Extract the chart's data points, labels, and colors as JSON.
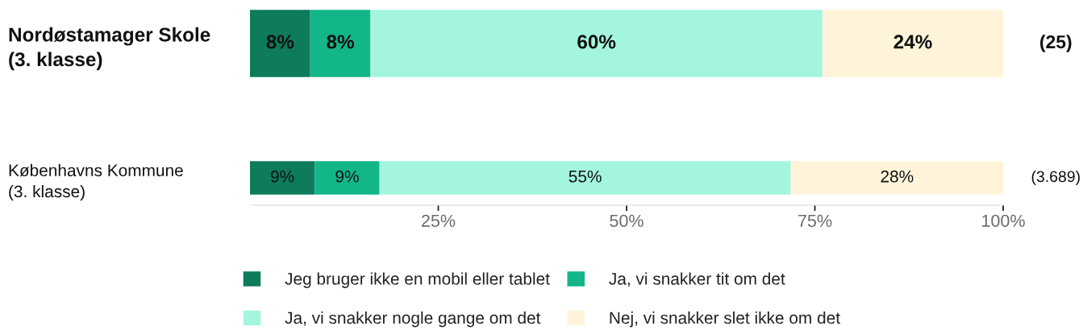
{
  "chart_data": {
    "type": "bar",
    "orientation": "horizontal",
    "stacked": true,
    "categories": [
      "Nordøstamager Skole\n(3. klasse)",
      "Københavns Kommune\n(3. klasse)"
    ],
    "series": [
      {
        "name": "Jeg bruger ikke en mobil eller tablet",
        "color": "#0e7b5b",
        "values": [
          8,
          8.6
        ],
        "value_labels": [
          "8%",
          "9%"
        ]
      },
      {
        "name": "Ja, vi snakker tit om det",
        "color": "#12b689",
        "values": [
          8,
          8.6
        ],
        "value_labels": [
          "8%",
          "9%"
        ]
      },
      {
        "name": "Ja, vi snakker nogle gange om det",
        "color": "#a3f5de",
        "values": [
          60,
          54.6
        ],
        "value_labels": [
          "60%",
          "55%"
        ]
      },
      {
        "name": "Nej, vi snakker slet ikke om det",
        "color": "#fff4da",
        "values": [
          24,
          28.2
        ],
        "value_labels": [
          "24%",
          "28%"
        ]
      }
    ],
    "xlim": [
      0,
      100
    ],
    "xticks": [
      {
        "value": 25,
        "label": "25%"
      },
      {
        "value": 50,
        "label": "50%"
      },
      {
        "value": 75,
        "label": "75%"
      },
      {
        "value": 100,
        "label": "100%"
      }
    ],
    "annotations": [
      {
        "text": "(25)",
        "x": 100,
        "y": "Nordøstamager Skole\n(3. klasse)"
      },
      {
        "text": "(3.689)",
        "x": 100,
        "y": "Københavns Kommune\n(3. klasse)"
      }
    ],
    "legend": "bottom",
    "grid": false
  }
}
